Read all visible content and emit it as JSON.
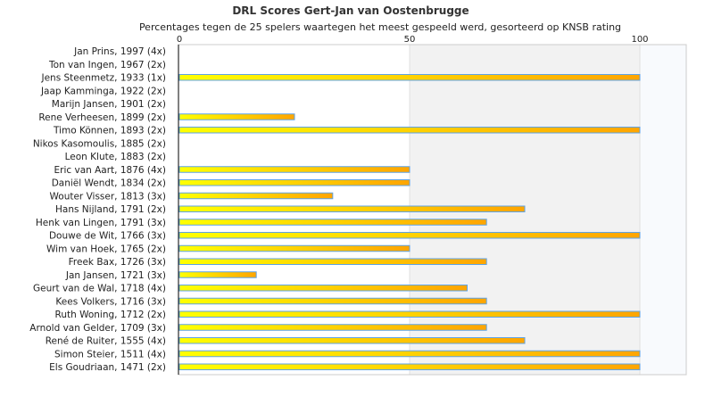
{
  "chart_data": {
    "type": "bar",
    "orientation": "horizontal",
    "title": "DRL Scores Gert-Jan van Oostenbrugge",
    "subtitle": "Percentages tegen de 25 spelers waartegen het meest gespeeld werd, gesorteerd op KNSB rating",
    "xlim": [
      0,
      110
    ],
    "xticks": [
      0,
      50,
      100
    ],
    "categories": [
      "Jan Prins, 1997 (4x)",
      "Ton van Ingen, 1967 (2x)",
      "Jens Steenmetz, 1933 (1x)",
      "Jaap Kamminga, 1922 (2x)",
      "Marijn Jansen, 1901 (2x)",
      "Rene Verheesen, 1899 (2x)",
      "Timo Können, 1893 (2x)",
      "Nikos Kasomoulis, 1885 (2x)",
      "Leon Klute, 1883 (2x)",
      "Eric van Aart, 1876 (4x)",
      "Daniël Wendt, 1834 (2x)",
      "Wouter Visser, 1813 (3x)",
      "Hans Nijland, 1791 (2x)",
      "Henk van Lingen, 1791 (3x)",
      "Douwe de Wit, 1766 (3x)",
      "Wim van Hoek, 1765 (2x)",
      "Freek Bax, 1726 (3x)",
      "Jan Jansen, 1721 (3x)",
      "Geurt van de Wal, 1718 (4x)",
      "Kees Volkers, 1716 (3x)",
      "Ruth Woning, 1712 (2x)",
      "Arnold van Gelder, 1709 (3x)",
      "René de Ruiter, 1555 (4x)",
      "Simon Steier, 1511 (4x)",
      "Els Goudriaan, 1471 (2x)"
    ],
    "values": [
      0,
      0,
      100,
      0,
      0,
      25,
      100,
      0,
      0,
      50,
      50,
      33.3,
      75,
      66.7,
      100,
      50,
      66.7,
      16.7,
      62.5,
      66.7,
      100,
      66.7,
      75,
      100,
      100
    ],
    "colors": {
      "bar_start": "#ffff00",
      "bar_end": "#ffa500",
      "bar_border": "#5ea3e6",
      "band": "#f2f2f2",
      "beyond": "#f8fafd"
    }
  }
}
